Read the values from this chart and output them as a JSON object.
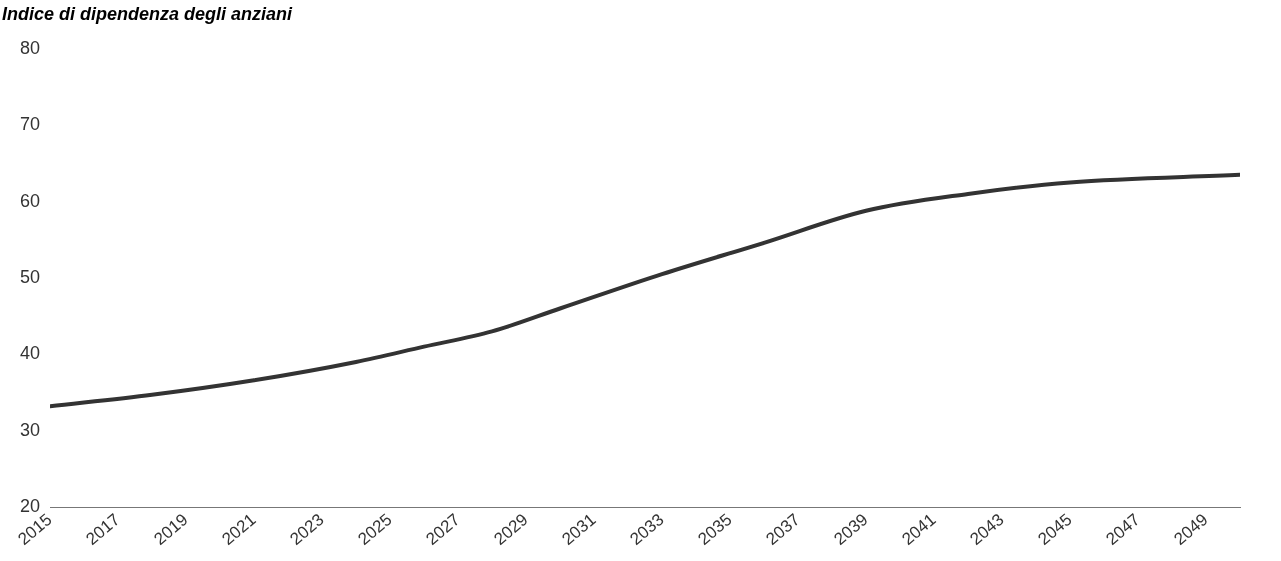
{
  "chart_data": {
    "type": "line",
    "title": "Indice di dipendenza degli anziani",
    "x": [
      2015,
      2018,
      2021,
      2024,
      2026,
      2028,
      2030,
      2033,
      2036,
      2039,
      2042,
      2045,
      2050
    ],
    "series": [
      {
        "color": "#333333",
        "values": [
          33.2,
          34.7,
          36.6,
          39,
          41,
          43,
          46,
          50.5,
          54.6,
          58.8,
          61,
          62.5,
          63.5
        ]
      }
    ],
    "xlim": [
      2015,
      2050
    ],
    "xticks": [
      2015,
      2017,
      2019,
      2021,
      2023,
      2025,
      2027,
      2029,
      2031,
      2033,
      2035,
      2037,
      2039,
      2041,
      2043,
      2045,
      2047,
      2049
    ],
    "ylim": [
      20,
      80
    ],
    "yticks": [
      20,
      30,
      40,
      50,
      60,
      70,
      80
    ],
    "grid": false,
    "legend": false,
    "marker": "none",
    "line_style": "solid"
  }
}
